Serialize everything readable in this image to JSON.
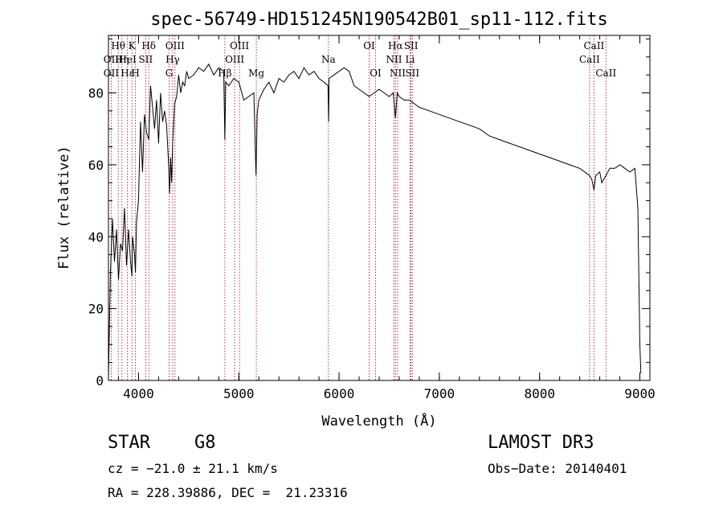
{
  "chart_data": {
    "type": "line",
    "title": "spec-56749-HD151245N190542B01_sp11-112.fits",
    "xlabel": "Wavelength (Å)",
    "ylabel": "Flux (relative)",
    "xlim": [
      3700,
      9100
    ],
    "ylim": [
      0,
      96
    ],
    "x_ticks": [
      4000,
      5000,
      6000,
      7000,
      8000,
      9000
    ],
    "y_ticks": [
      0,
      20,
      40,
      60,
      80
    ],
    "grid": false,
    "series": [
      {
        "name": "spectrum",
        "x": [
          3700,
          3720,
          3740,
          3760,
          3780,
          3800,
          3820,
          3840,
          3860,
          3880,
          3900,
          3920,
          3934,
          3940,
          3960,
          3969,
          3980,
          4000,
          4020,
          4040,
          4060,
          4080,
          4102,
          4120,
          4140,
          4160,
          4180,
          4200,
          4220,
          4240,
          4260,
          4280,
          4300,
          4310,
          4320,
          4330,
          4340,
          4360,
          4380,
          4400,
          4420,
          4440,
          4460,
          4480,
          4500,
          4550,
          4600,
          4650,
          4700,
          4750,
          4800,
          4850,
          4861,
          4870,
          4900,
          4950,
          5000,
          5050,
          5100,
          5150,
          5172,
          5183,
          5200,
          5250,
          5300,
          5350,
          5400,
          5450,
          5500,
          5550,
          5600,
          5650,
          5700,
          5750,
          5800,
          5850,
          5890,
          5896,
          5900,
          5950,
          6000,
          6050,
          6100,
          6150,
          6200,
          6250,
          6300,
          6350,
          6400,
          6450,
          6500,
          6540,
          6563,
          6580,
          6600,
          6650,
          6700,
          6750,
          6800,
          6900,
          7000,
          7100,
          7200,
          7300,
          7400,
          7500,
          7600,
          7700,
          7800,
          7900,
          8000,
          8100,
          8200,
          8300,
          8400,
          8450,
          8498,
          8520,
          8542,
          8560,
          8600,
          8620,
          8662,
          8700,
          8750,
          8800,
          8850,
          8900,
          8950,
          8980,
          9000,
          9010
        ],
        "y": [
          1,
          30,
          45,
          33,
          42,
          28,
          38,
          36,
          48,
          32,
          42,
          33,
          29,
          40,
          35,
          30,
          44,
          50,
          72,
          58,
          74,
          69,
          67,
          82,
          76,
          70,
          78,
          66,
          80,
          72,
          75,
          71,
          60,
          52,
          62,
          55,
          66,
          77,
          79,
          85,
          80,
          83,
          82,
          86,
          84,
          85,
          87,
          86,
          88,
          85,
          87,
          86,
          67,
          83,
          82,
          84,
          83,
          78,
          79,
          80,
          57,
          74,
          78,
          81,
          83,
          80,
          84,
          83,
          85,
          86,
          84,
          87,
          85,
          86,
          84,
          83,
          82,
          72,
          84,
          85,
          86,
          87,
          86,
          82,
          81,
          80,
          79,
          80,
          81,
          80,
          79,
          80,
          73,
          80,
          79,
          78,
          78,
          77,
          76,
          75,
          74,
          73,
          72,
          71,
          70,
          68,
          67,
          66,
          65,
          64,
          63,
          62,
          61,
          60,
          59,
          58,
          57,
          56,
          53,
          57,
          58,
          55,
          57,
          59,
          59,
          60,
          59,
          58,
          59,
          48,
          10,
          2
        ]
      }
    ],
    "lines": [
      {
        "label": "Hθ",
        "x": 3798,
        "row": 1
      },
      {
        "label": "OII",
        "x": 3727,
        "row": 2
      },
      {
        "label": "OII",
        "x": 3727,
        "row": 3
      },
      {
        "label": "Hη",
        "x": 3835,
        "row": 2
      },
      {
        "label": "Hε",
        "x": 3889,
        "row": 3
      },
      {
        "label": "K",
        "x": 3934,
        "row": 1
      },
      {
        "label": "HeI",
        "x": 3889,
        "row": 2
      },
      {
        "label": "H",
        "x": 3969,
        "row": 3
      },
      {
        "label": "Hδ",
        "x": 4102,
        "row": 1
      },
      {
        "label": "SII",
        "x": 4072,
        "row": 2
      },
      {
        "label": "OIII",
        "x": 4363,
        "row": 1
      },
      {
        "label": "Hγ",
        "x": 4340,
        "row": 2
      },
      {
        "label": "G",
        "x": 4305,
        "row": 3
      },
      {
        "label": "OIII",
        "x": 5007,
        "row": 1
      },
      {
        "label": "OIII",
        "x": 4959,
        "row": 2
      },
      {
        "label": "Hβ",
        "x": 4861,
        "row": 3
      },
      {
        "label": "Mg",
        "x": 5175,
        "row": 3
      },
      {
        "label": "Na",
        "x": 5894,
        "row": 2
      },
      {
        "label": "OI",
        "x": 6300,
        "row": 1
      },
      {
        "label": "OI",
        "x": 6364,
        "row": 3
      },
      {
        "label": "Hα",
        "x": 6563,
        "row": 1
      },
      {
        "label": "NII",
        "x": 6548,
        "row": 2
      },
      {
        "label": "NII",
        "x": 6584,
        "row": 3
      },
      {
        "label": "SII",
        "x": 6717,
        "row": 1
      },
      {
        "label": "Li",
        "x": 6708,
        "row": 2
      },
      {
        "label": "SII",
        "x": 6731,
        "row": 3
      },
      {
        "label": "CaII",
        "x": 8542,
        "row": 1
      },
      {
        "label": "CaII",
        "x": 8498,
        "row": 2
      },
      {
        "label": "CaII",
        "x": 8662,
        "row": 3
      }
    ],
    "line_markers": [
      3727,
      3798,
      3835,
      3889,
      3934,
      3969,
      4072,
      4102,
      4305,
      4340,
      4363,
      4861,
      4959,
      5007,
      5175,
      5894,
      6300,
      6364,
      6548,
      6563,
      6584,
      6708,
      6717,
      6731,
      8498,
      8542,
      8662
    ]
  },
  "info": {
    "object_class": "STAR",
    "subclass": "G8",
    "survey": "LAMOST DR3",
    "cz_line": "cz = −21.0 ± 21.1 km/s",
    "obs_date": "Obs−Date: 20140401",
    "coords": "RA = 228.39886, DEC =  21.23316"
  }
}
